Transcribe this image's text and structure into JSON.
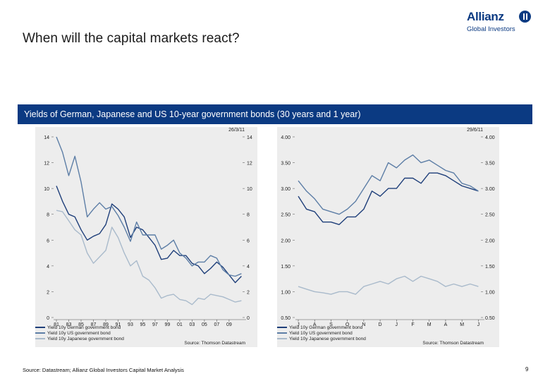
{
  "slide": {
    "title": "When will the capital markets react?",
    "banner": "Yields of German, Japanese and US 10-year government bonds (30 years and 1 year)",
    "footnote": "Source: Datastream; Allianz Global Investors Capital Market Analysis",
    "page_number": "9"
  },
  "logo": {
    "word": "Allianz",
    "sub": "Global Investors",
    "mark_icon": "allianz-eagle-icon"
  },
  "colors": {
    "brand_blue": "#0b3a82",
    "panel_bg": "#ededed",
    "german": "#1f3f7a",
    "us": "#5d7ea6",
    "japan": "#a9bacb"
  },
  "chart_data": [
    {
      "type": "line",
      "date_label": "26/3/11",
      "ylim": [
        0,
        14
      ],
      "y_ticks_left": [
        "14",
        "12",
        "10",
        "8",
        "6",
        "4",
        "2",
        "0"
      ],
      "y_ticks_right": [
        "14",
        "12",
        "10",
        "8",
        "6",
        "4",
        "2",
        "0"
      ],
      "x_ticks": [
        "81",
        "83",
        "85",
        "87",
        "89",
        "91",
        "93",
        "95",
        "97",
        "99",
        "01",
        "03",
        "05",
        "07",
        "09"
      ],
      "grid": false,
      "legend_position": "bottom-left",
      "source": "Source: Thomson Datastream",
      "series": [
        {
          "name": "Yield 10y German government bond",
          "x": [
            1981,
            1982,
            1983,
            1984,
            1985,
            1986,
            1987,
            1988,
            1989,
            1990,
            1991,
            1992,
            1993,
            1994,
            1995,
            1996,
            1997,
            1998,
            1999,
            2000,
            2001,
            2002,
            2003,
            2004,
            2005,
            2006,
            2007,
            2008,
            2009,
            2010,
            2011
          ],
          "values": [
            10.2,
            9.0,
            8.0,
            7.8,
            6.8,
            6.0,
            6.3,
            6.5,
            7.2,
            8.8,
            8.4,
            7.8,
            6.2,
            7.0,
            6.8,
            6.2,
            5.6,
            4.5,
            4.6,
            5.2,
            4.8,
            4.8,
            4.2,
            4.0,
            3.4,
            3.8,
            4.3,
            3.9,
            3.3,
            2.7,
            3.2
          ]
        },
        {
          "name": "Yield 10y US government bond",
          "x": [
            1981,
            1982,
            1983,
            1984,
            1985,
            1986,
            1987,
            1988,
            1989,
            1990,
            1991,
            1992,
            1993,
            1994,
            1995,
            1996,
            1997,
            1998,
            1999,
            2000,
            2001,
            2002,
            2003,
            2004,
            2005,
            2006,
            2007,
            2008,
            2009,
            2010,
            2011
          ],
          "values": [
            14.0,
            12.8,
            11.0,
            12.5,
            10.5,
            7.8,
            8.4,
            8.9,
            8.4,
            8.6,
            7.9,
            7.0,
            5.9,
            7.4,
            6.4,
            6.4,
            6.4,
            5.3,
            5.6,
            6.0,
            5.0,
            4.6,
            4.0,
            4.3,
            4.3,
            4.8,
            4.6,
            3.7,
            3.3,
            3.2,
            3.4
          ]
        },
        {
          "name": "Yield 10y Japanese government bond",
          "x": [
            1981,
            1982,
            1983,
            1984,
            1985,
            1986,
            1987,
            1988,
            1989,
            1990,
            1991,
            1992,
            1993,
            1994,
            1995,
            1996,
            1997,
            1998,
            1999,
            2000,
            2001,
            2002,
            2003,
            2004,
            2005,
            2006,
            2007,
            2008,
            2009,
            2010,
            2011
          ],
          "values": [
            8.3,
            8.2,
            7.5,
            6.8,
            6.4,
            5.0,
            4.2,
            4.7,
            5.2,
            7.0,
            6.2,
            5.0,
            4.0,
            4.4,
            3.2,
            2.9,
            2.3,
            1.5,
            1.7,
            1.8,
            1.4,
            1.3,
            1.0,
            1.5,
            1.4,
            1.8,
            1.7,
            1.6,
            1.4,
            1.2,
            1.3
          ]
        }
      ]
    },
    {
      "type": "line",
      "date_label": "29/6/11",
      "ylim": [
        0.5,
        4.0
      ],
      "y_ticks_left": [
        "4.00",
        "3.50",
        "3.00",
        "2.50",
        "2.00",
        "1.50",
        "1.00",
        "0.50"
      ],
      "y_ticks_right": [
        "4.00",
        "3.50",
        "3.00",
        "2.50",
        "2.00",
        "1.50",
        "1.00",
        "0.50"
      ],
      "x_ticks": [
        "J",
        "A",
        "S",
        "O",
        "N",
        "D",
        "J",
        "F",
        "M",
        "A",
        "M",
        "J"
      ],
      "grid": false,
      "legend_position": "bottom-left",
      "source": "Source: Thomson Datastream",
      "series": [
        {
          "name": "Yield 10y German government bond",
          "x": [
            0,
            0.5,
            1,
            1.5,
            2,
            2.5,
            3,
            3.5,
            4,
            4.5,
            5,
            5.5,
            6,
            6.5,
            7,
            7.5,
            8,
            8.5,
            9,
            9.5,
            10,
            10.5,
            11
          ],
          "values": [
            2.85,
            2.6,
            2.55,
            2.35,
            2.35,
            2.3,
            2.45,
            2.45,
            2.6,
            2.95,
            2.85,
            3.0,
            3.0,
            3.2,
            3.2,
            3.1,
            3.3,
            3.3,
            3.25,
            3.15,
            3.05,
            3.0,
            2.95
          ]
        },
        {
          "name": "Yield 10y US government bond",
          "x": [
            0,
            0.5,
            1,
            1.5,
            2,
            2.5,
            3,
            3.5,
            4,
            4.5,
            5,
            5.5,
            6,
            6.5,
            7,
            7.5,
            8,
            8.5,
            9,
            9.5,
            10,
            10.5,
            11
          ],
          "values": [
            3.15,
            2.95,
            2.8,
            2.6,
            2.55,
            2.5,
            2.6,
            2.75,
            3.0,
            3.25,
            3.15,
            3.5,
            3.4,
            3.55,
            3.65,
            3.5,
            3.55,
            3.45,
            3.35,
            3.3,
            3.1,
            3.05,
            2.95
          ]
        },
        {
          "name": "Yield 10y Japanese government bond",
          "x": [
            0,
            0.5,
            1,
            1.5,
            2,
            2.5,
            3,
            3.5,
            4,
            4.5,
            5,
            5.5,
            6,
            6.5,
            7,
            7.5,
            8,
            8.5,
            9,
            9.5,
            10,
            10.5,
            11
          ],
          "values": [
            1.1,
            1.05,
            1.0,
            0.98,
            0.95,
            1.0,
            1.0,
            0.95,
            1.1,
            1.15,
            1.2,
            1.15,
            1.25,
            1.3,
            1.2,
            1.3,
            1.25,
            1.2,
            1.1,
            1.15,
            1.1,
            1.15,
            1.1
          ]
        }
      ]
    }
  ]
}
